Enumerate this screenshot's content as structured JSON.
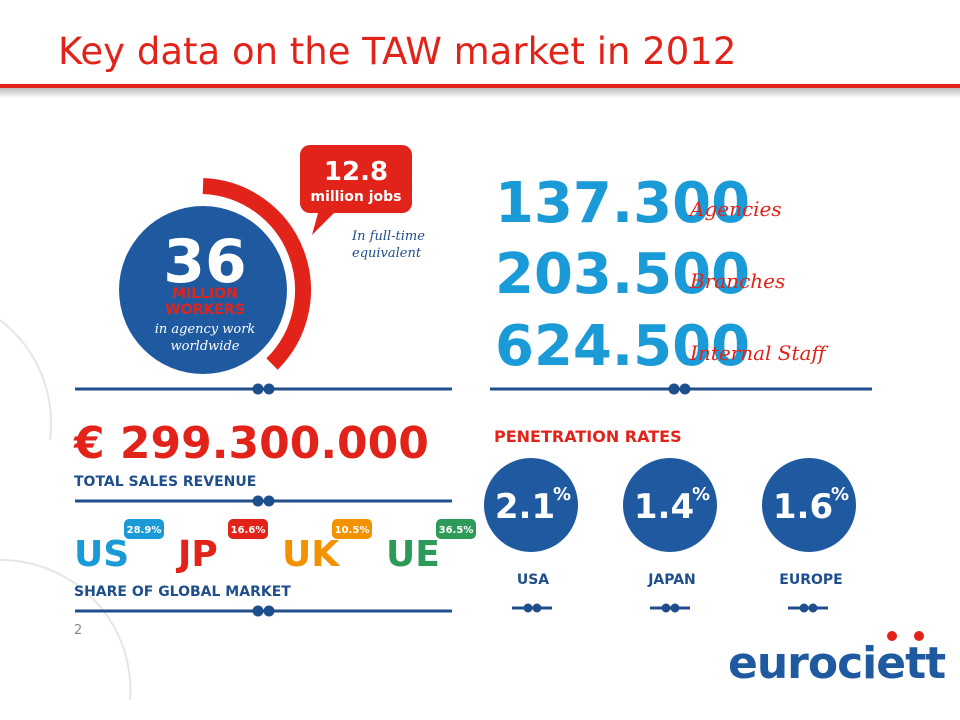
{
  "header": {
    "title": "Key data on the TAW market in 2012"
  },
  "workers": {
    "number": "36",
    "unit": "MILLION",
    "unit2": "WORKERS",
    "caption": "in agency work",
    "caption2": "worldwide"
  },
  "jobs": {
    "number": "12.8",
    "unit": "million jobs",
    "note": "In full-time",
    "note2": "equivalent"
  },
  "counts": [
    {
      "number": "137.300",
      "label": "Agencies"
    },
    {
      "number": "203.500",
      "label": "Branches"
    },
    {
      "number": "624.500",
      "label": "Internal Staff"
    }
  ],
  "revenue": {
    "number": "€ 299.300.000",
    "label": "TOTAL SALES REVENUE"
  },
  "market_share": {
    "title": "SHARE OF GLOBAL MARKET",
    "items": [
      {
        "code": "US",
        "share": "28.9%"
      },
      {
        "code": "JP",
        "share": "16.6%"
      },
      {
        "code": "UK",
        "share": "10.5%"
      },
      {
        "code": "UE",
        "share": "36.5%"
      }
    ]
  },
  "penetration": {
    "title": "PENETRATION RATES",
    "items": [
      {
        "rate": "2.1",
        "unit": "%",
        "region": "USA"
      },
      {
        "rate": "1.4",
        "unit": "%",
        "region": "JAPAN"
      },
      {
        "rate": "1.6",
        "unit": "%",
        "region": "EUROPE"
      }
    ]
  },
  "footer": {
    "page": "2",
    "logo": "eurociett"
  }
}
